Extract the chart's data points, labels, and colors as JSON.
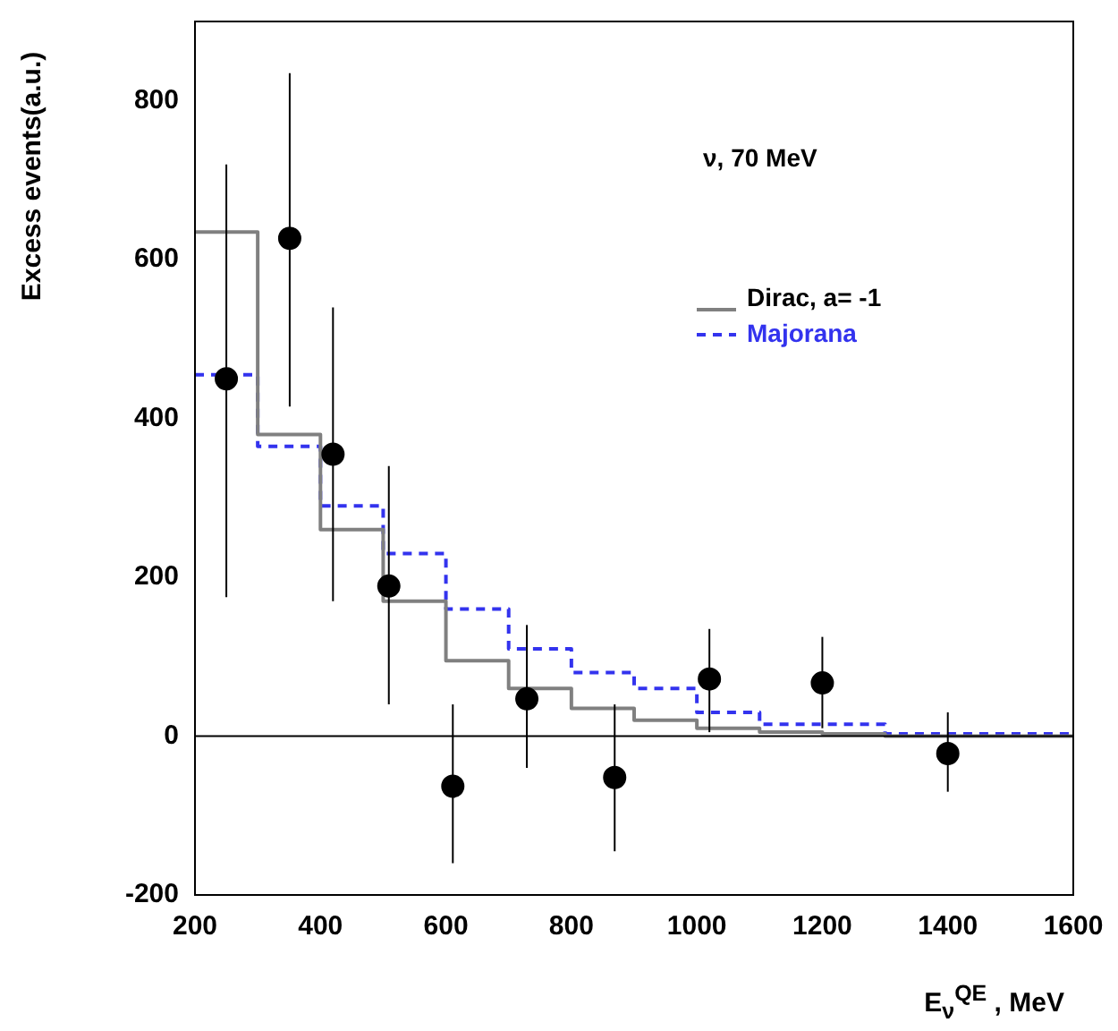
{
  "chart_data": {
    "type": "scatter",
    "xlabel": "E$_{ν}$$^{QE}$ , MeV",
    "ylabel": "Excess events(a.u.)",
    "annotations": [
      "ν, 70 MeV"
    ],
    "xlim": [
      200,
      1600
    ],
    "xticks": [
      200,
      400,
      600,
      800,
      1000,
      1200,
      1400,
      1600
    ],
    "ylim": [
      -200,
      900
    ],
    "yticks": [
      -200,
      0,
      200,
      400,
      600,
      800
    ],
    "grid": false,
    "legend": "top right",
    "ref_lines": [
      {
        "axis": "y",
        "value": 0,
        "color": "#000000"
      }
    ],
    "series": [
      {
        "type": "scatter",
        "color": "#000000",
        "marker": "circle",
        "x": [
          250,
          351,
          420,
          509,
          611,
          729,
          869,
          1020,
          1200,
          1400
        ],
        "values": [
          450,
          627,
          355,
          189,
          -63,
          47,
          -52,
          72,
          67,
          -22
        ],
        "errors": [
          [
            175,
            720
          ],
          [
            415,
            835
          ],
          [
            170,
            540
          ],
          [
            40,
            340
          ],
          [
            -160,
            40
          ],
          [
            -40,
            140
          ],
          [
            -145,
            40
          ],
          [
            5,
            135
          ],
          [
            10,
            125
          ],
          [
            -70,
            30
          ]
        ]
      },
      {
        "type": "step",
        "name": "Dirac, a= -1",
        "color": "#808080",
        "line_style": "solid",
        "x": [
          200,
          300,
          400,
          500,
          600,
          700,
          800,
          900,
          1000,
          1100,
          1200,
          1300,
          1600
        ],
        "values": [
          635,
          380,
          260,
          170,
          95,
          60,
          35,
          20,
          10,
          5,
          3,
          0,
          0
        ]
      },
      {
        "type": "step",
        "name": "Majorana",
        "color": "#3333ee",
        "line_style": "dashed",
        "x": [
          200,
          300,
          400,
          500,
          600,
          700,
          800,
          900,
          1000,
          1100,
          1200,
          1300,
          1600
        ],
        "values": [
          455,
          365,
          290,
          230,
          160,
          110,
          80,
          60,
          30,
          15,
          15,
          3,
          3
        ]
      }
    ]
  }
}
